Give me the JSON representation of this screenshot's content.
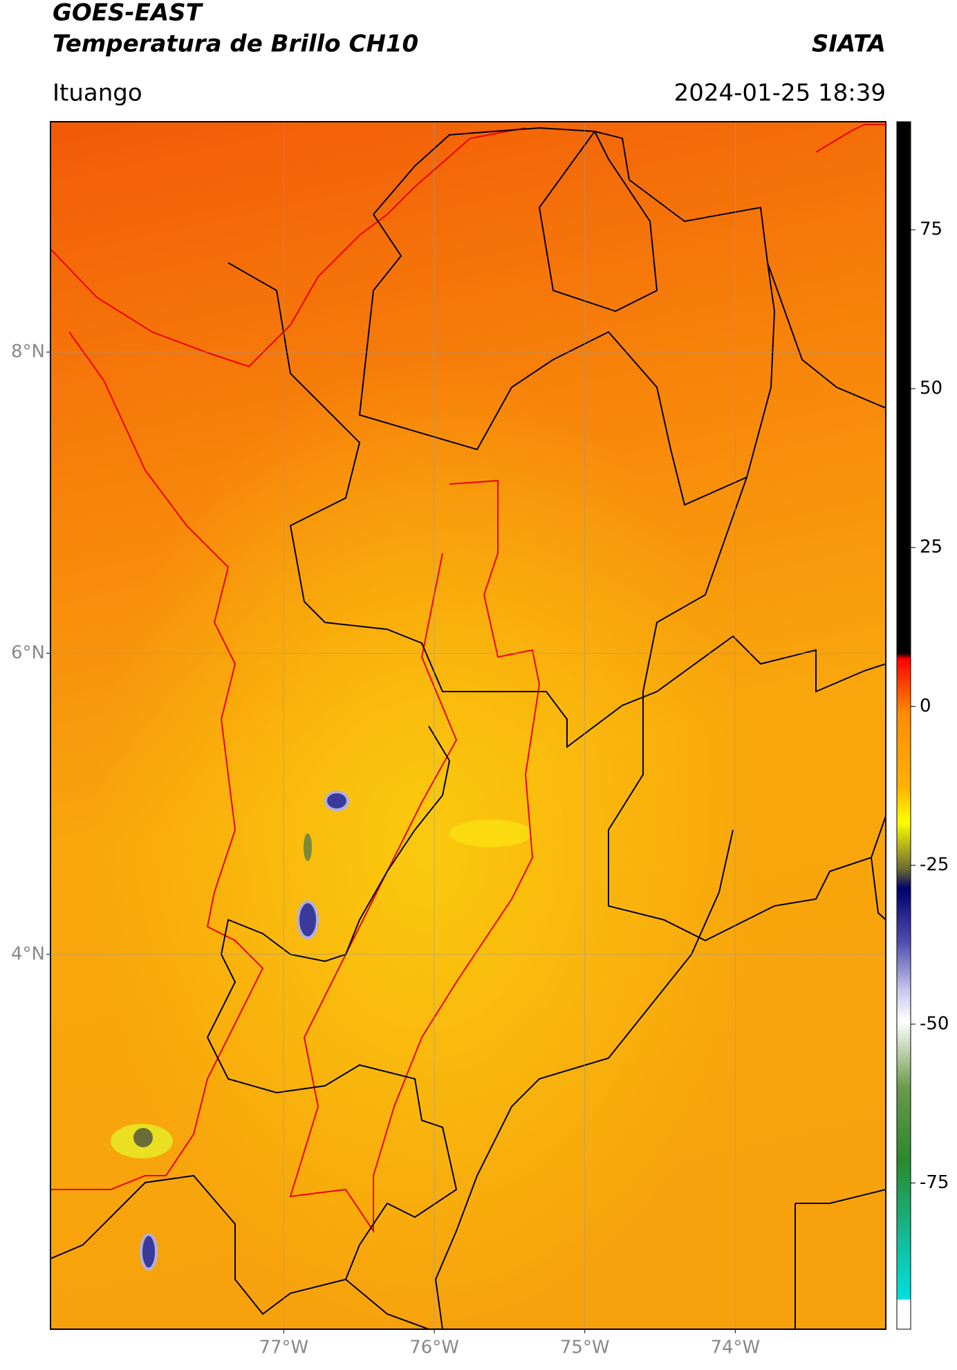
{
  "header": {
    "title": "GOES-EAST",
    "subtitle": "Temperatura de Brillo CH10",
    "source": "SIATA",
    "location": "Ituango",
    "datetime": "2024-01-25 18:39"
  },
  "map": {
    "xlim": [
      -78.55,
      -73.0
    ],
    "ylim": [
      1.51,
      9.53
    ],
    "xticks": [
      {
        "value": -77,
        "label": "77°W"
      },
      {
        "value": -76,
        "label": "76°W"
      },
      {
        "value": -75,
        "label": "75°W"
      },
      {
        "value": -74,
        "label": "74°W"
      }
    ],
    "yticks": [
      {
        "value": 8,
        "label": "8°N"
      },
      {
        "value": 6,
        "label": "6°N"
      },
      {
        "value": 4,
        "label": "4°N"
      }
    ],
    "grid": true
  },
  "colorbar": {
    "lim": [
      -98,
      92
    ],
    "ticks": [
      75,
      50,
      25,
      0,
      -25,
      -50,
      -75
    ]
  }
}
